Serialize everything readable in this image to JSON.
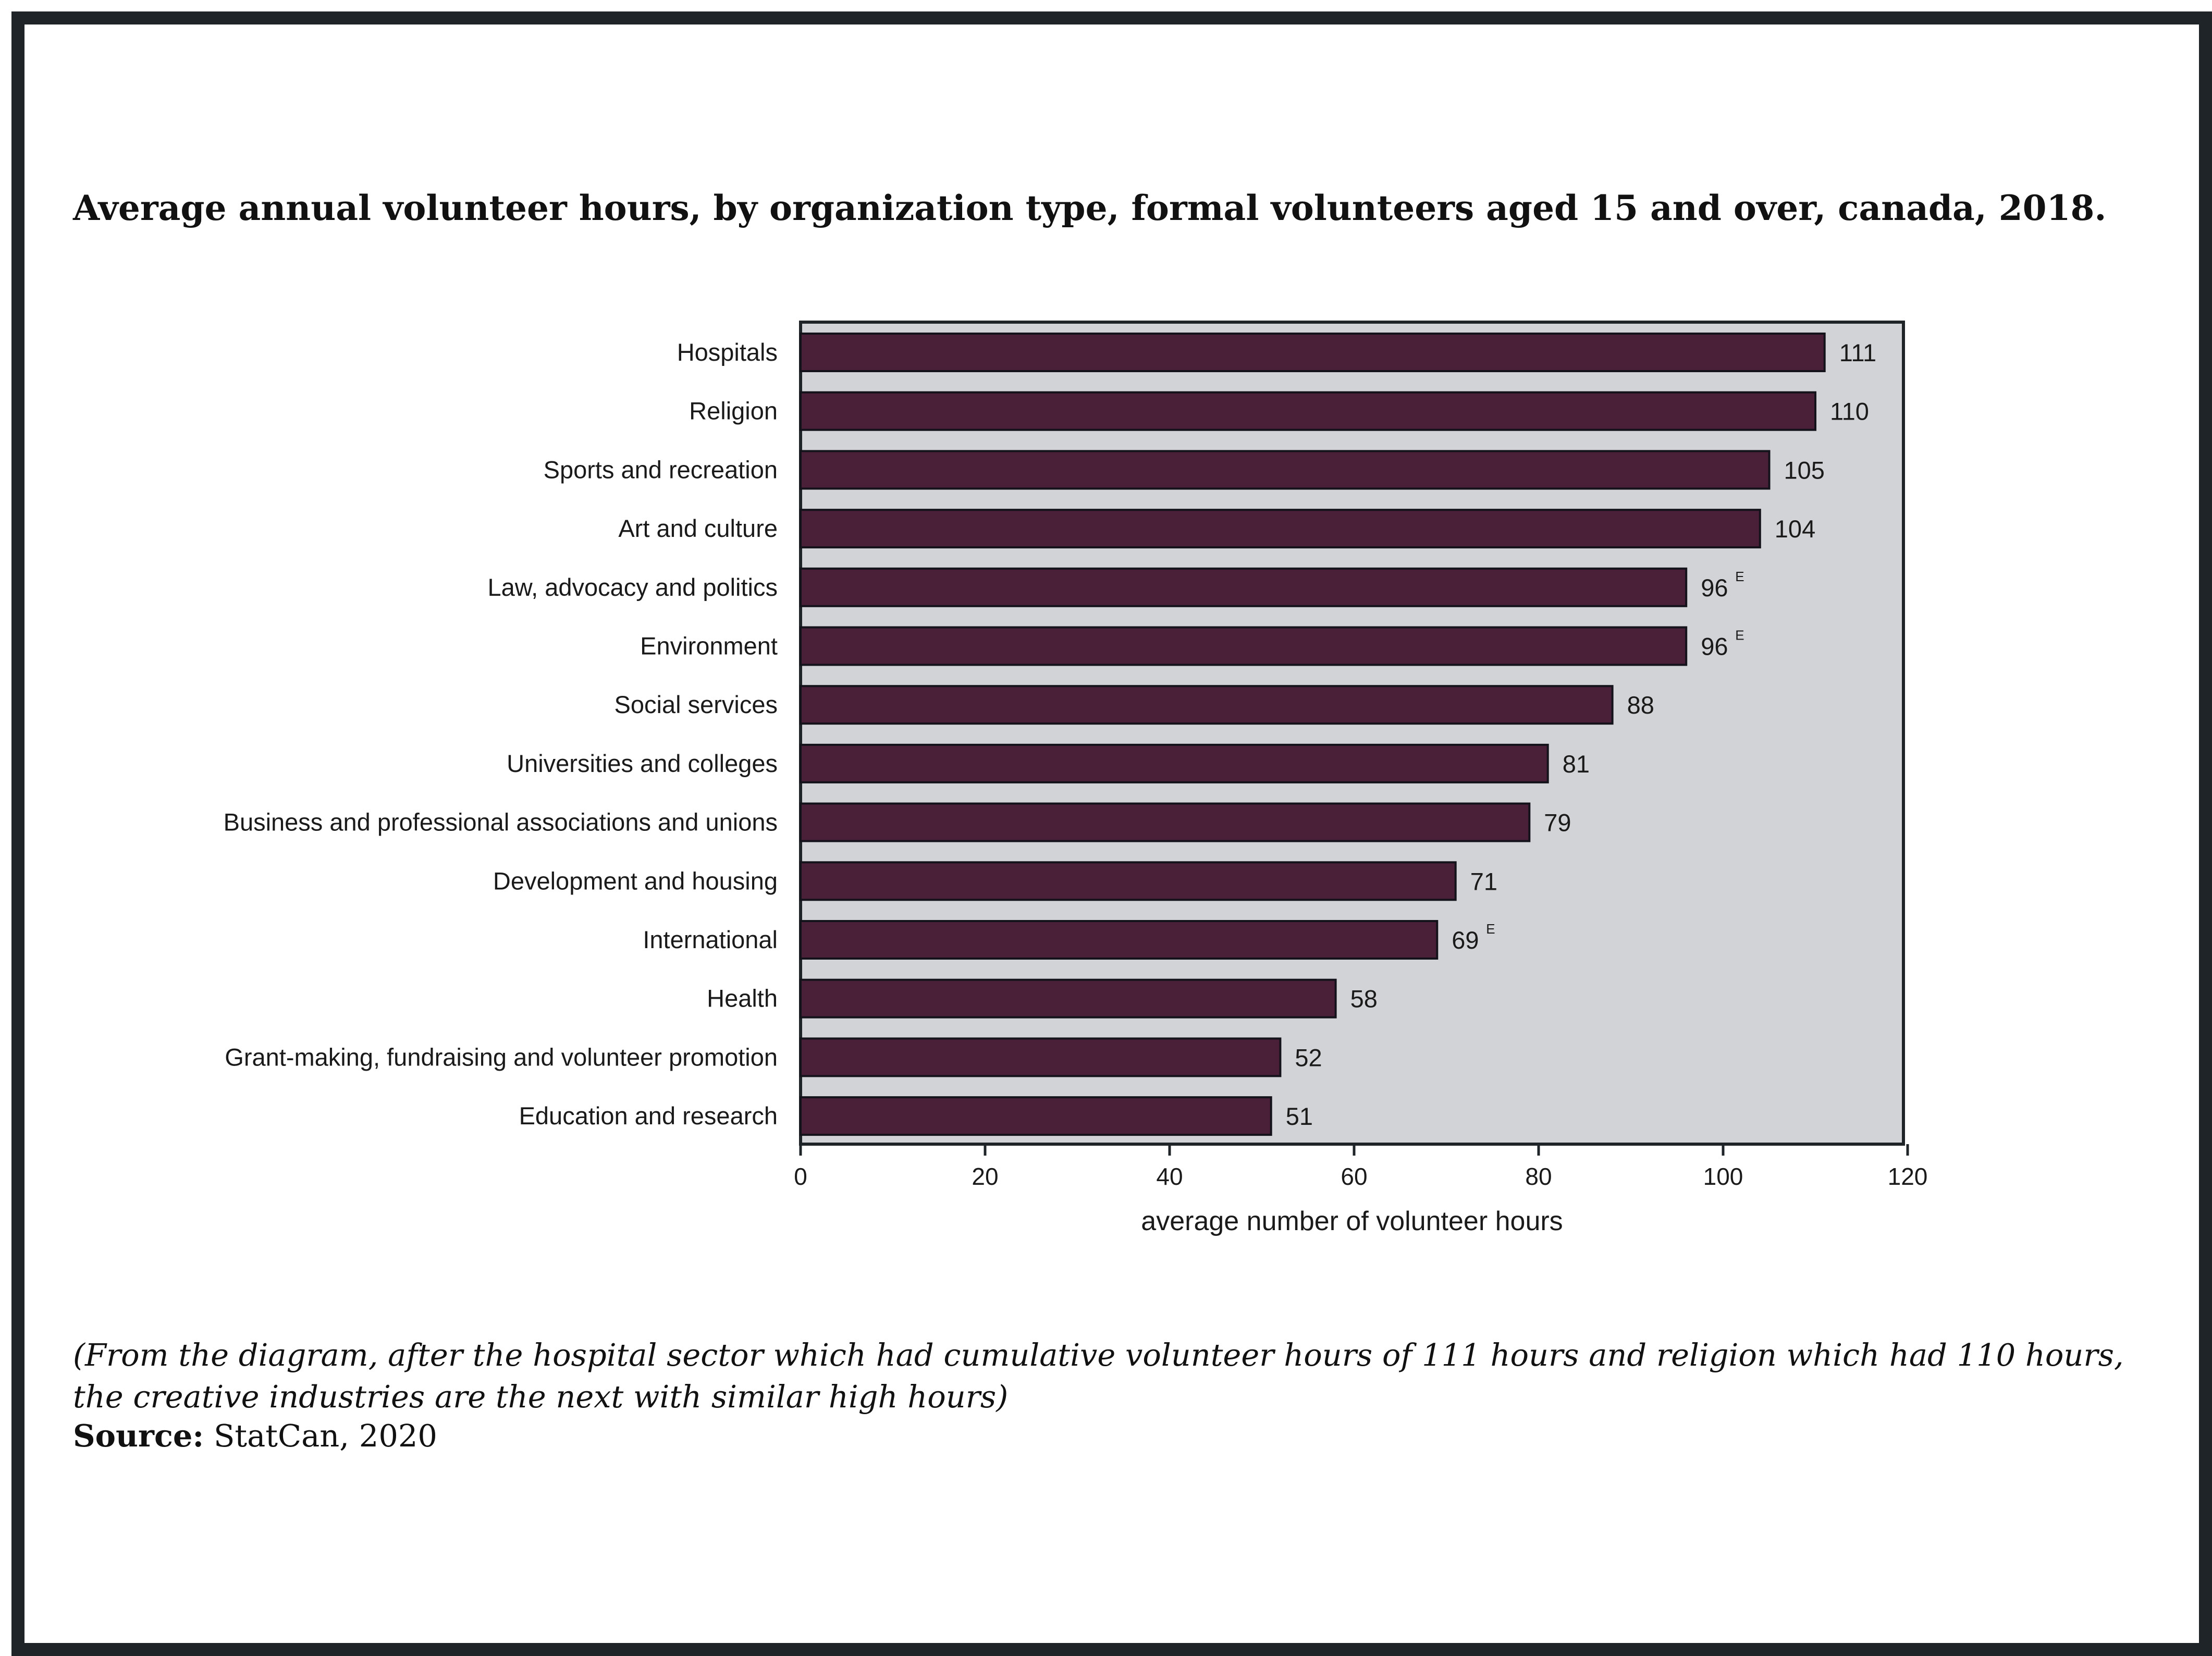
{
  "title": "Average annual volunteer hours, by organization type, formal volunteers aged 15 and over, canada, 2018.",
  "note": "(From the diagram, after the hospital sector which had cumulative volunteer hours of 111 hours and religion which had 110 hours, the creative industries are the next with similar high hours)",
  "source": {
    "label": "Source:",
    "text": "StatCan, 2020"
  },
  "colors": {
    "bar": "#4a1f38",
    "plot_background": "#d2d3d6",
    "frame": "#1f2428"
  },
  "chart_data": {
    "type": "bar",
    "orientation": "horizontal",
    "categories": [
      "Hospitals",
      "Religion",
      "Sports and recreation",
      "Art and culture",
      "Law, advocacy and politics",
      "Environment",
      "Social services",
      "Universities and colleges",
      "Business and professional associations and unions",
      "Development and housing",
      "International",
      "Health",
      "Grant-making, fundraising and  volunteer promotion",
      "Education and research"
    ],
    "values": [
      111,
      110,
      105,
      104,
      96,
      96,
      88,
      81,
      79,
      71,
      69,
      58,
      52,
      51
    ],
    "value_labels": [
      "111",
      "110",
      "105",
      "104",
      "96",
      "96",
      "88",
      "81",
      "79",
      "71",
      "69",
      "58",
      "52",
      "51"
    ],
    "flags": [
      "",
      "",
      "",
      "",
      "E",
      "E",
      "",
      "",
      "",
      "",
      "E",
      "",
      "",
      ""
    ],
    "xlabel": "average number of volunteer hours",
    "ylabel": "",
    "xlim": [
      0,
      120
    ],
    "xticks": [
      0,
      20,
      40,
      60,
      80,
      100,
      120
    ],
    "grid": false,
    "legend": "none"
  }
}
